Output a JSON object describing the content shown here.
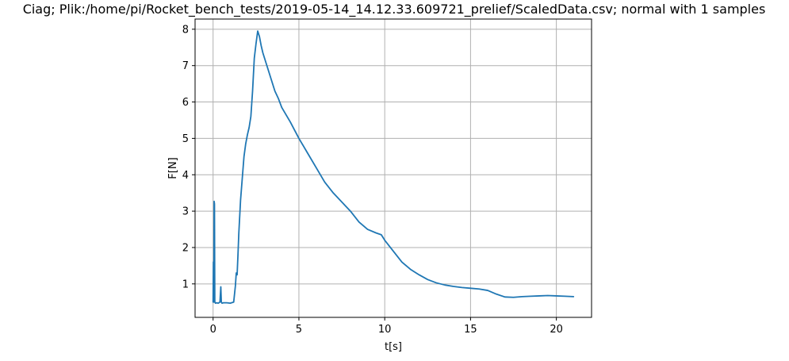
{
  "chart_data": {
    "type": "line",
    "title": "Ciag; Plik:/home/pi/Rocket_bench_tests/2019-05-14_14.12.33.609721_prelief/ScaledData.csv; normal with 1 samples",
    "xlabel": "t[s]",
    "ylabel": "F[N]",
    "xlim": [
      -1.05,
      22.05
    ],
    "ylim": [
      0.08,
      8.28
    ],
    "xticks": [
      0,
      5,
      10,
      15,
      20
    ],
    "yticks": [
      1,
      2,
      3,
      4,
      5,
      6,
      7,
      8
    ],
    "grid": true,
    "line_color": "#1f77b4",
    "series": [
      {
        "x": [
          0.0,
          0.02,
          0.04,
          0.06,
          0.08,
          0.1,
          0.14,
          0.2,
          0.3,
          0.4,
          0.45,
          0.48,
          0.52,
          0.6,
          0.8,
          1.0,
          1.2,
          1.3,
          1.35,
          1.4,
          1.45,
          1.5,
          1.6,
          1.7,
          1.8,
          1.9,
          2.0,
          2.1,
          2.2,
          2.3,
          2.4,
          2.5,
          2.6,
          2.7,
          2.8,
          2.9,
          3.0,
          3.2,
          3.4,
          3.6,
          3.8,
          4.0,
          4.5,
          5.0,
          5.5,
          6.0,
          6.5,
          7.0,
          7.5,
          8.0,
          8.5,
          9.0,
          9.5,
          9.8,
          10.0,
          10.5,
          11.0,
          11.5,
          12.0,
          12.5,
          13.0,
          13.5,
          14.0,
          14.5,
          15.0,
          15.5,
          16.0,
          16.5,
          17.0,
          17.5,
          18.0,
          18.5,
          19.0,
          19.5,
          20.0,
          20.5,
          21.0
        ],
        "y": [
          0.5,
          1.6,
          0.5,
          3.27,
          3.2,
          0.5,
          0.47,
          0.48,
          0.47,
          0.5,
          0.92,
          0.5,
          0.47,
          0.48,
          0.48,
          0.47,
          0.5,
          0.95,
          1.3,
          1.25,
          1.8,
          2.4,
          3.3,
          3.9,
          4.5,
          4.85,
          5.1,
          5.3,
          5.6,
          6.3,
          7.2,
          7.6,
          7.95,
          7.8,
          7.55,
          7.35,
          7.2,
          6.9,
          6.6,
          6.3,
          6.1,
          5.85,
          5.45,
          5.0,
          4.6,
          4.2,
          3.8,
          3.5,
          3.25,
          3.0,
          2.7,
          2.5,
          2.4,
          2.35,
          2.2,
          1.9,
          1.6,
          1.4,
          1.25,
          1.12,
          1.03,
          0.97,
          0.93,
          0.9,
          0.88,
          0.86,
          0.82,
          0.72,
          0.64,
          0.63,
          0.65,
          0.66,
          0.67,
          0.68,
          0.67,
          0.66,
          0.65
        ]
      }
    ]
  }
}
